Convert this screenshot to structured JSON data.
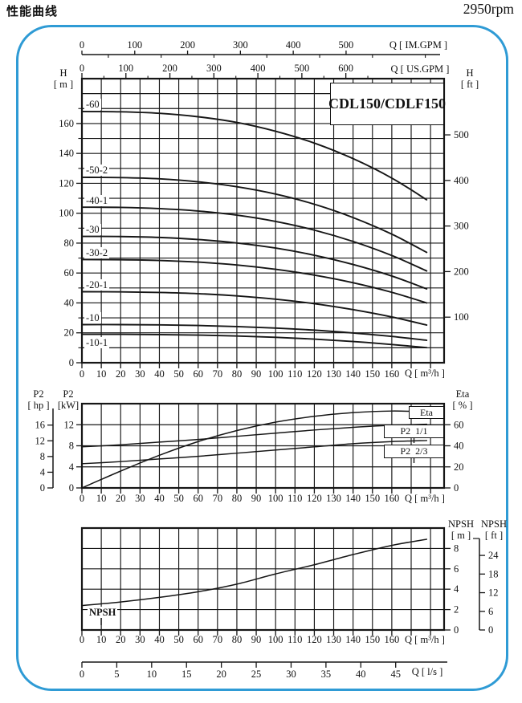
{
  "header": {
    "title": "性能曲线",
    "rpm": "2950rpm"
  },
  "model": "CDL150/CDLF150",
  "axes": {
    "im_gpm": {
      "label": "Q [ IM.GPM ]",
      "ticks": [
        0,
        100,
        200,
        300,
        400,
        500
      ]
    },
    "us_gpm": {
      "label": "Q [ US.GPM ]",
      "ticks": [
        0,
        100,
        200,
        300,
        400,
        500,
        600
      ]
    },
    "h_m": {
      "name": "H",
      "unit": "[ m ]",
      "ticks": [
        0,
        20,
        40,
        60,
        80,
        100,
        120,
        140,
        160
      ]
    },
    "h_ft": {
      "name": "H",
      "unit": "[ ft ]",
      "ticks": [
        100,
        200,
        300,
        400,
        500
      ]
    },
    "q_m3h": {
      "label": "Q [ m³/h ]",
      "ticks": [
        0,
        10,
        20,
        30,
        40,
        50,
        60,
        70,
        80,
        90,
        100,
        110,
        120,
        130,
        140,
        150,
        160
      ]
    },
    "p2_hp": {
      "name": "P2",
      "unit": "[ hp ]",
      "ticks": [
        0,
        4,
        8,
        12,
        16
      ]
    },
    "p2_kw": {
      "name": "P2",
      "unit": "[kW]",
      "ticks": [
        0,
        4,
        8,
        12
      ]
    },
    "eta_pct": {
      "name": "Eta",
      "unit": "[ % ]",
      "ticks": [
        0,
        20,
        40,
        60
      ]
    },
    "npsh_m": {
      "name": "NPSH",
      "unit": "[ m ]",
      "ticks": [
        0,
        2,
        4,
        6,
        8
      ]
    },
    "npsh_ft": {
      "name": "NPSH",
      "unit": "[ ft ]",
      "ticks": [
        0,
        6,
        12,
        18,
        24
      ]
    },
    "q_ls": {
      "label": "Q [ l/s ]",
      "ticks": [
        0,
        5,
        10,
        15,
        20,
        25,
        30,
        35,
        40,
        45
      ]
    }
  },
  "curve_boxes": {
    "eta": "Eta",
    "p2_full": "P2  1/1",
    "p2_partial": "P2  2/3",
    "npsh": "NPSH"
  },
  "chart_data": [
    {
      "name": "head-flow-curves",
      "type": "line",
      "title": "CDL150/CDLF150",
      "xlabel": "Q [ m³/h ]",
      "ylabel_left": "H [ m ]",
      "ylabel_right": "H [ ft ]",
      "xlim": [
        0,
        187
      ],
      "ylim": [
        0,
        190
      ],
      "grid": true,
      "x": [
        0,
        20,
        40,
        60,
        80,
        100,
        120,
        140,
        160,
        178
      ],
      "series": [
        {
          "label": "-60",
          "values": [
            168,
            167.8,
            166.8,
            164.5,
            160.7,
            154.8,
            146.9,
            136.5,
            123.5,
            109
          ]
        },
        {
          "label": "-50-2",
          "values": [
            124,
            123.8,
            123.0,
            121.0,
            117.7,
            112.8,
            106.0,
            97.1,
            86.0,
            73.8
          ]
        },
        {
          "label": "-40-1",
          "values": [
            104,
            103.9,
            103.1,
            101.5,
            98.7,
            94.5,
            88.7,
            81.1,
            71.7,
            61.4
          ]
        },
        {
          "label": "-30",
          "values": [
            84.5,
            84.4,
            83.8,
            82.4,
            80.1,
            76.7,
            71.9,
            65.7,
            58.0,
            49.4
          ]
        },
        {
          "label": "-30-2",
          "values": [
            69,
            68.9,
            68.4,
            67.3,
            65.4,
            62.5,
            58.6,
            53.5,
            47.1,
            40.0
          ]
        },
        {
          "label": "-20-1",
          "values": [
            47.5,
            47.4,
            47.0,
            46.2,
            44.7,
            42.5,
            39.5,
            35.5,
            30.6,
            25.2
          ]
        },
        {
          "label": "-10",
          "values": [
            25.5,
            25.5,
            25.3,
            24.9,
            24.2,
            23.2,
            21.8,
            19.9,
            17.6,
            15.0
          ]
        },
        {
          "label": "-10-1",
          "values": [
            19,
            19.0,
            18.8,
            18.5,
            17.9,
            17.0,
            15.8,
            14.2,
            12.2,
            10.1
          ]
        }
      ]
    },
    {
      "name": "power-efficiency-curves",
      "type": "line",
      "xlabel": "Q [ m³/h ]",
      "ylabel_left": "P2 [ hp ] / P2 [kW]",
      "ylabel_right": "Eta [ % ]",
      "xlim": [
        0,
        187
      ],
      "ylim_kw": [
        0,
        16
      ],
      "ylim_eta": [
        0,
        80
      ],
      "grid": true,
      "x": [
        0,
        20,
        40,
        60,
        80,
        100,
        120,
        140,
        160,
        178
      ],
      "series": [
        {
          "label": "Eta",
          "unit": "%",
          "values": [
            0,
            16,
            31,
            44,
            54.5,
            62.5,
            68,
            71.5,
            73,
            72.3
          ]
        },
        {
          "label": "P2  1/1",
          "unit": "kW",
          "values": [
            7.8,
            8.2,
            8.7,
            9.2,
            9.8,
            10.4,
            11.0,
            11.5,
            11.9,
            12.1
          ]
        },
        {
          "label": "P2  2/3",
          "unit": "kW",
          "values": [
            4.6,
            5.0,
            5.5,
            6.0,
            6.6,
            7.2,
            7.8,
            8.4,
            8.8,
            9.0
          ]
        }
      ]
    },
    {
      "name": "npsh-curve",
      "type": "line",
      "xlabel": "Q [ m³/h ]",
      "ylabel_right": "NPSH [ m ] / NPSH [ ft ]",
      "xlim": [
        0,
        187
      ],
      "ylim_m": [
        0,
        10
      ],
      "grid": true,
      "x": [
        0,
        20,
        40,
        60,
        80,
        100,
        120,
        140,
        160,
        178
      ],
      "series": [
        {
          "label": "NPSH",
          "unit": "m",
          "values": [
            2.4,
            2.75,
            3.2,
            3.75,
            4.5,
            5.5,
            6.4,
            7.4,
            8.3,
            8.9
          ]
        }
      ]
    }
  ]
}
